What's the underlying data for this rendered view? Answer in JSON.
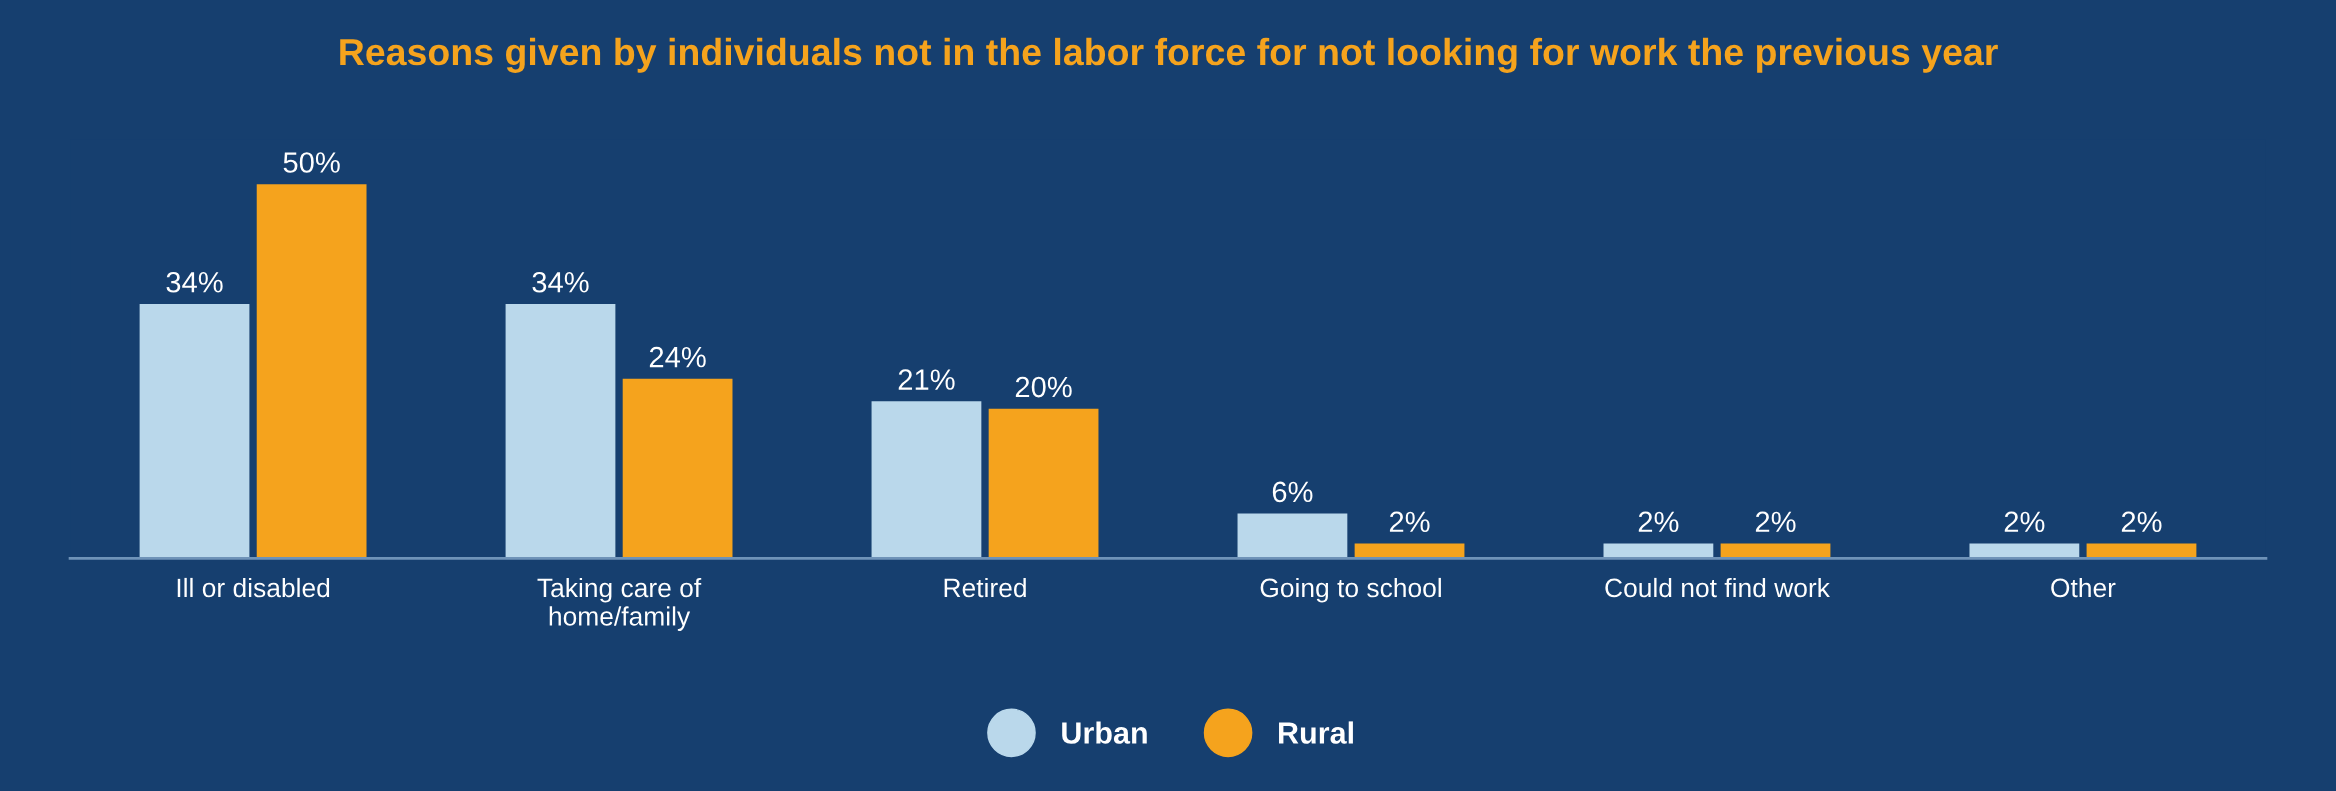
{
  "chart_data": {
    "type": "bar",
    "title": "Reasons given by individuals not in the labor force for not looking for work the previous year",
    "categories": [
      "Ill or disabled",
      "Taking care of\nhome/family",
      "Retired",
      "Going to school",
      "Could not find work",
      "Other"
    ],
    "series": [
      {
        "name": "Urban",
        "color": "#bad8eb",
        "values": [
          34,
          34,
          21,
          6,
          2,
          2
        ],
        "value_labels": [
          "34%",
          "34%",
          "21%",
          "6%",
          "2%",
          "2%"
        ]
      },
      {
        "name": "Rural",
        "color": "#f5a31d",
        "values": [
          50,
          24,
          20,
          2,
          2,
          2
        ],
        "value_labels": [
          "50%",
          "24%",
          "20%",
          "2%",
          "2%",
          "2%"
        ]
      }
    ],
    "legend": "bottom",
    "grid": false
  }
}
